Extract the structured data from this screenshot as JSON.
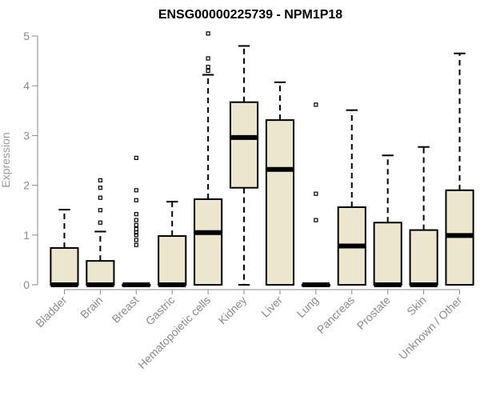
{
  "chart_data": {
    "type": "boxplot",
    "title": "ENSG00000225739 - NPM1P18",
    "xlabel": "",
    "ylabel": "Expression",
    "ylim": [
      0,
      5
    ],
    "yticks": [
      0,
      1,
      2,
      3,
      4,
      5
    ],
    "box_fill": "#ede6cf",
    "box_stroke": "#000000",
    "axis_color": "#8a8a8a",
    "grid": false,
    "categories": [
      "Bladder",
      "Brain",
      "Breast",
      "Gastric",
      "Hematopoietic cells",
      "Kidney",
      "Liver",
      "Lung",
      "Pancreas",
      "Prostate",
      "Skin",
      "Unknown / Other"
    ],
    "boxes": [
      {
        "category": "Bladder",
        "min": 0,
        "q1": 0,
        "median": 0,
        "q3": 0.74,
        "max": 1.51,
        "outliers": []
      },
      {
        "category": "Brain",
        "min": 0,
        "q1": 0,
        "median": 0,
        "q3": 0.48,
        "max": 1.07,
        "outliers": [
          1.25,
          1.5,
          1.75,
          1.95,
          2.1
        ]
      },
      {
        "category": "Breast",
        "min": 0,
        "q1": 0,
        "median": 0,
        "q3": 0,
        "max": 0,
        "outliers": [
          0.8,
          0.9,
          1.0,
          1.05,
          1.12,
          1.2,
          1.3,
          1.42,
          1.7,
          1.9,
          2.55
        ]
      },
      {
        "category": "Gastric",
        "min": 0,
        "q1": 0,
        "median": 0,
        "q3": 0.98,
        "max": 1.67,
        "outliers": []
      },
      {
        "category": "Hematopoietic cells",
        "min": 0,
        "q1": 0,
        "median": 1.05,
        "q3": 1.72,
        "max": 4.22,
        "outliers": [
          4.3,
          4.38,
          4.55,
          5.05
        ]
      },
      {
        "category": "Kidney",
        "min": 0,
        "q1": 1.95,
        "median": 2.96,
        "q3": 3.67,
        "max": 4.8,
        "outliers": []
      },
      {
        "category": "Liver",
        "min": 0,
        "q1": 0,
        "median": 2.32,
        "q3": 3.31,
        "max": 4.07,
        "outliers": []
      },
      {
        "category": "Lung",
        "min": 0,
        "q1": 0,
        "median": 0,
        "q3": 0,
        "max": 0,
        "outliers": [
          1.3,
          1.83,
          3.62
        ]
      },
      {
        "category": "Pancreas",
        "min": 0,
        "q1": 0,
        "median": 0.78,
        "q3": 1.56,
        "max": 3.51,
        "outliers": []
      },
      {
        "category": "Prostate",
        "min": 0,
        "q1": 0,
        "median": 0,
        "q3": 1.25,
        "max": 2.6,
        "outliers": []
      },
      {
        "category": "Skin",
        "min": 0,
        "q1": 0,
        "median": 0,
        "q3": 1.1,
        "max": 2.77,
        "outliers": []
      },
      {
        "category": "Unknown / Other",
        "min": 0,
        "q1": 0,
        "median": 0.99,
        "q3": 1.9,
        "max": 4.65,
        "outliers": []
      }
    ]
  }
}
